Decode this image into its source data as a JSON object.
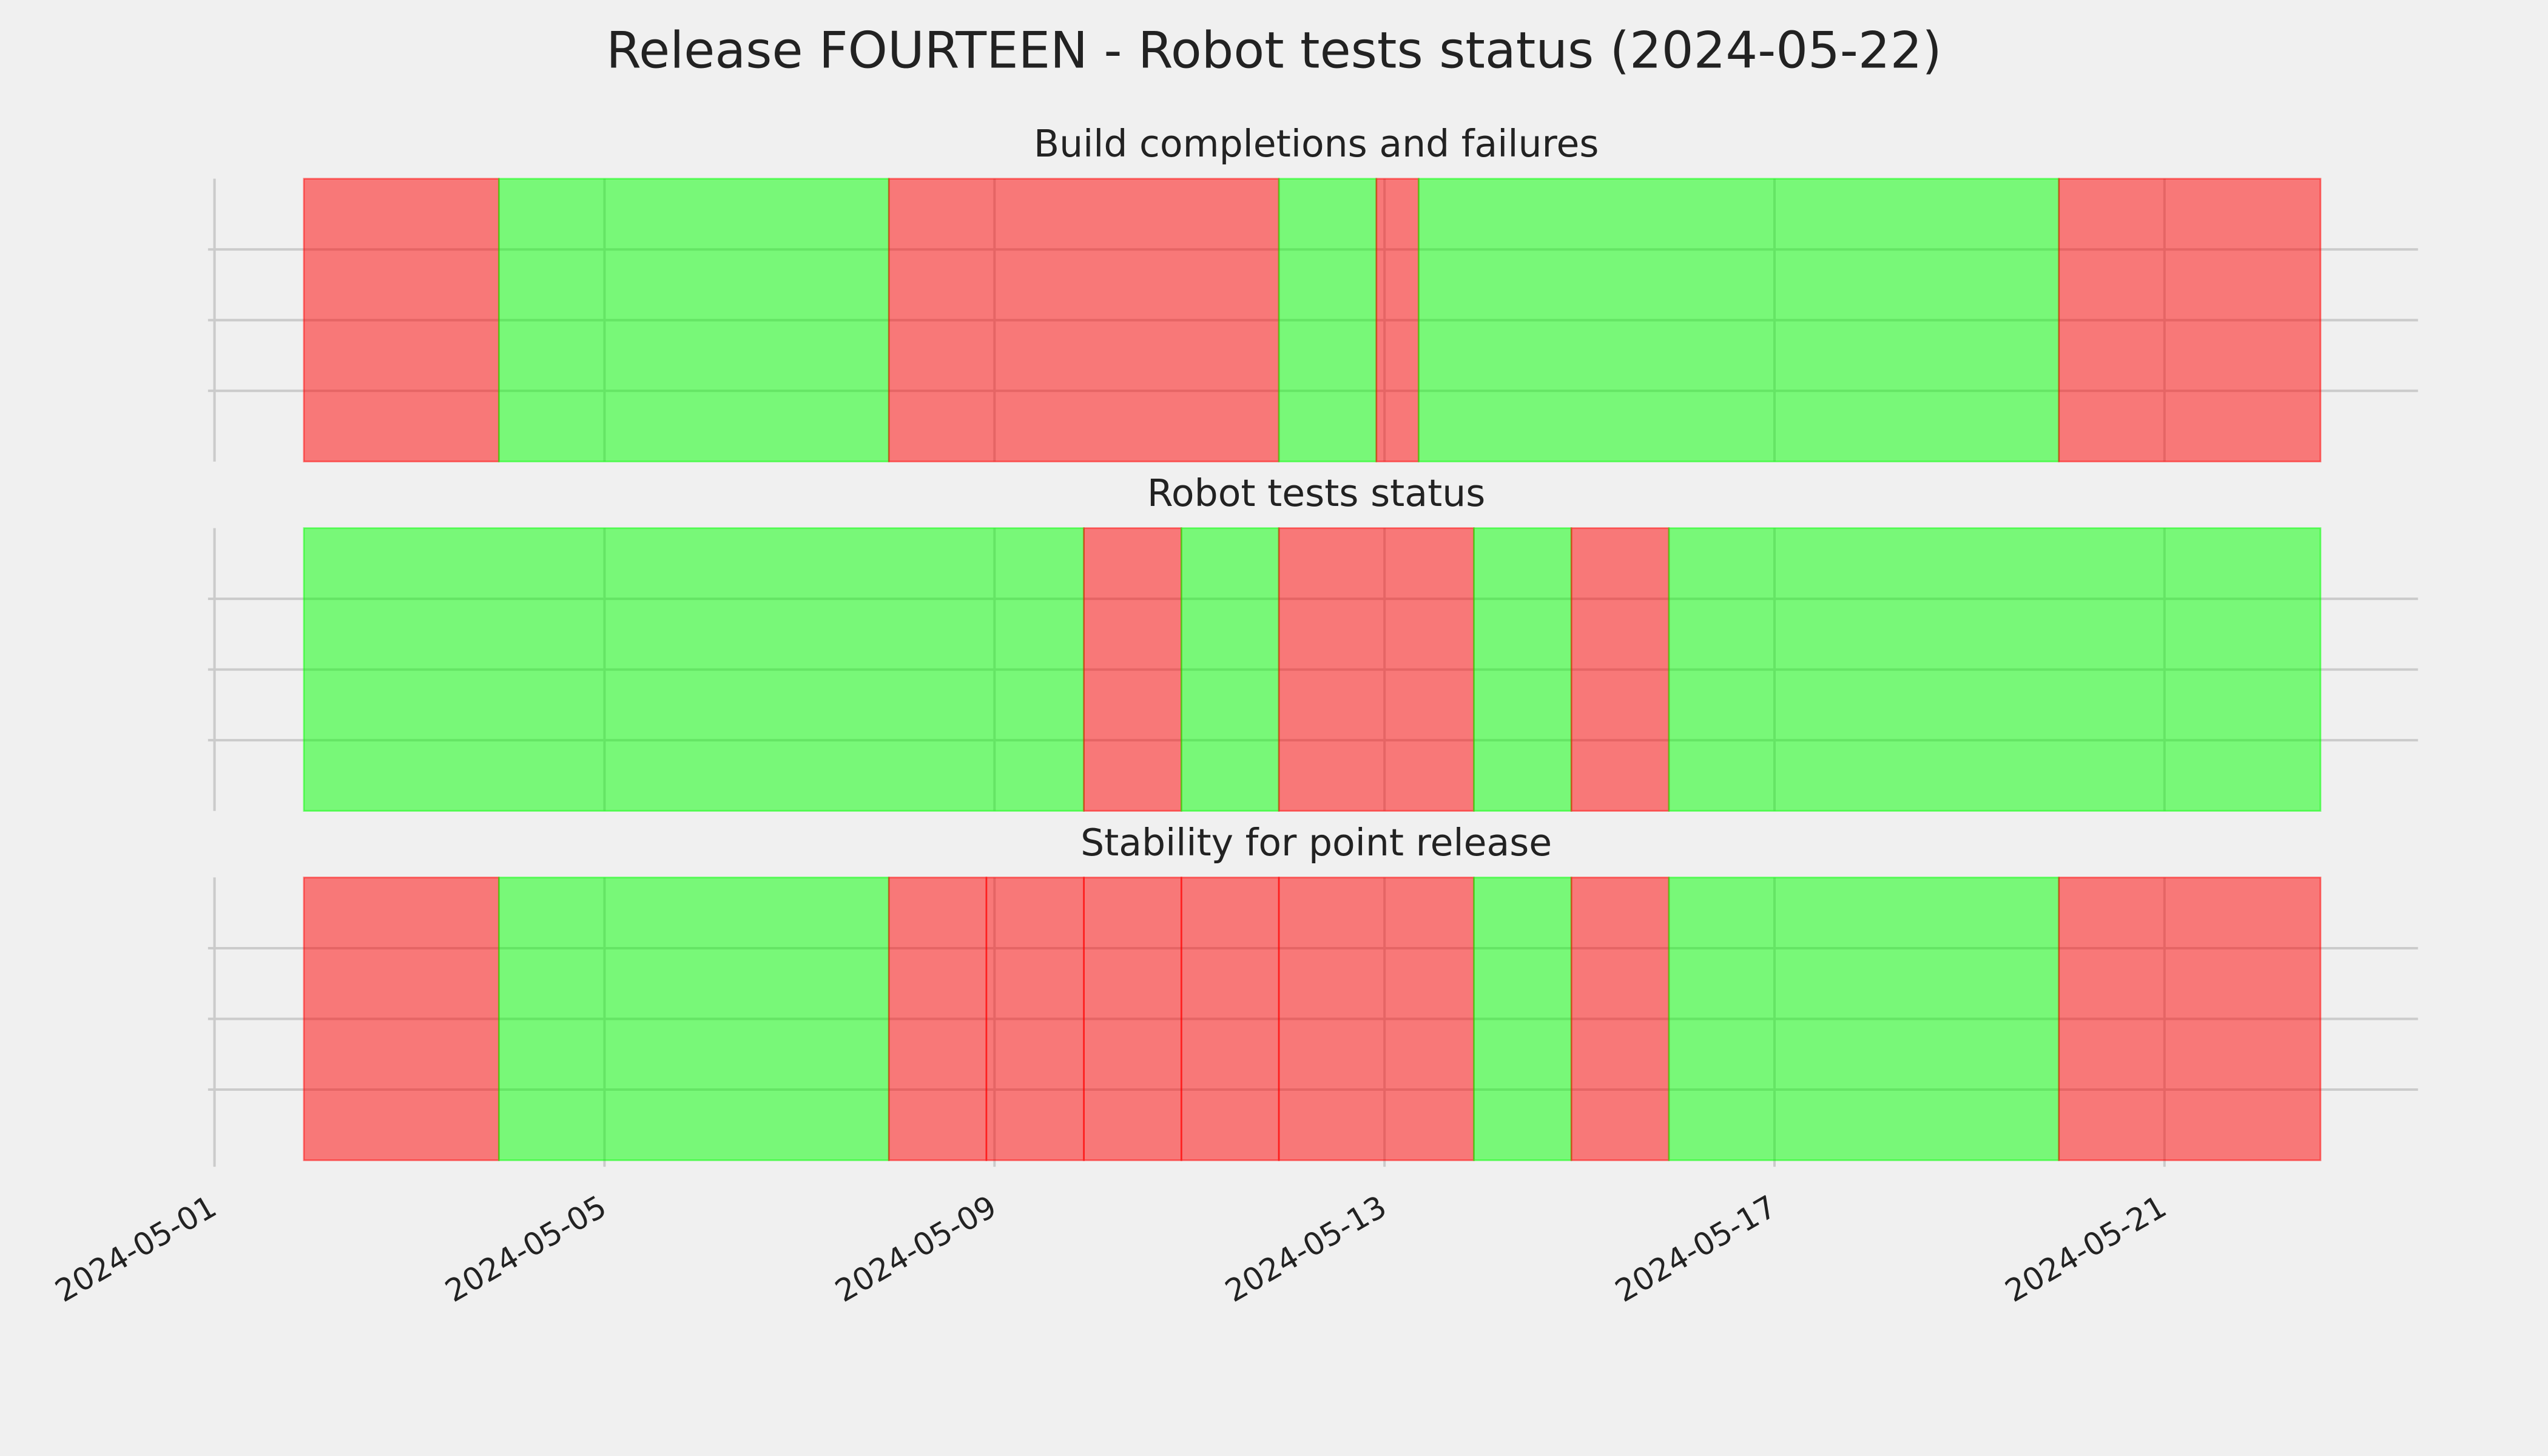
{
  "title": "Release FOURTEEN - Robot tests status (2024-05-22)",
  "chart_data": [
    {
      "type": "span",
      "title": "Build completions and failures",
      "alpha": 0.5,
      "grid": true,
      "xlim": [
        "2024-05-01T00:00",
        "2024-05-23T14:24"
      ],
      "xticks": [
        {
          "value": "2024-05-01T00:00",
          "label": "2024-05-01"
        },
        {
          "value": "2024-05-05T00:00",
          "label": "2024-05-05"
        },
        {
          "value": "2024-05-09T00:00",
          "label": "2024-05-09"
        },
        {
          "value": "2024-05-13T00:00",
          "label": "2024-05-13"
        },
        {
          "value": "2024-05-17T00:00",
          "label": "2024-05-17"
        },
        {
          "value": "2024-05-21T00:00",
          "label": "2024-05-21"
        }
      ],
      "ylim": [
        0,
        1
      ],
      "yticks": [
        0.25,
        0.5,
        0.75
      ],
      "segments": [
        {
          "start": "2024-05-01T22:00",
          "end": "2024-05-03T22:00",
          "color": "#ff0000"
        },
        {
          "start": "2024-05-03T22:00",
          "end": "2024-05-07T22:00",
          "color": "#00ff00"
        },
        {
          "start": "2024-05-07T22:00",
          "end": "2024-05-11T22:00",
          "color": "#ff0000"
        },
        {
          "start": "2024-05-11T22:00",
          "end": "2024-05-12T22:00",
          "color": "#00ff00"
        },
        {
          "start": "2024-05-12T22:00",
          "end": "2024-05-13T08:24",
          "color": "#ff0000"
        },
        {
          "start": "2024-05-13T08:24",
          "end": "2024-05-19T22:00",
          "color": "#00ff00"
        },
        {
          "start": "2024-05-19T22:00",
          "end": "2024-05-22T14:24",
          "color": "#ff0000"
        }
      ]
    },
    {
      "type": "span",
      "title": "Robot tests status",
      "alpha": 0.5,
      "grid": true,
      "xlim": [
        "2024-05-01T00:00",
        "2024-05-23T14:24"
      ],
      "xticks": [
        {
          "value": "2024-05-01T00:00",
          "label": "2024-05-01"
        },
        {
          "value": "2024-05-05T00:00",
          "label": "2024-05-05"
        },
        {
          "value": "2024-05-09T00:00",
          "label": "2024-05-09"
        },
        {
          "value": "2024-05-13T00:00",
          "label": "2024-05-13"
        },
        {
          "value": "2024-05-17T00:00",
          "label": "2024-05-17"
        },
        {
          "value": "2024-05-21T00:00",
          "label": "2024-05-21"
        }
      ],
      "ylim": [
        0,
        1
      ],
      "yticks": [
        0.25,
        0.5,
        0.75
      ],
      "segments": [
        {
          "start": "2024-05-01T22:00",
          "end": "2024-05-09T22:00",
          "color": "#00ff00"
        },
        {
          "start": "2024-05-09T22:00",
          "end": "2024-05-10T22:00",
          "color": "#ff0000"
        },
        {
          "start": "2024-05-10T22:00",
          "end": "2024-05-11T22:00",
          "color": "#00ff00"
        },
        {
          "start": "2024-05-11T22:00",
          "end": "2024-05-13T22:00",
          "color": "#ff0000"
        },
        {
          "start": "2024-05-13T22:00",
          "end": "2024-05-14T22:00",
          "color": "#00ff00"
        },
        {
          "start": "2024-05-14T22:00",
          "end": "2024-05-15T22:00",
          "color": "#ff0000"
        },
        {
          "start": "2024-05-15T22:00",
          "end": "2024-05-22T14:24",
          "color": "#00ff00"
        }
      ]
    },
    {
      "type": "span",
      "title": "Stability for point release",
      "alpha": 0.5,
      "grid": true,
      "xlim": [
        "2024-05-01T00:00",
        "2024-05-23T14:24"
      ],
      "xticks": [
        {
          "value": "2024-05-01T00:00",
          "label": "2024-05-01"
        },
        {
          "value": "2024-05-05T00:00",
          "label": "2024-05-05"
        },
        {
          "value": "2024-05-09T00:00",
          "label": "2024-05-09"
        },
        {
          "value": "2024-05-13T00:00",
          "label": "2024-05-13"
        },
        {
          "value": "2024-05-17T00:00",
          "label": "2024-05-17"
        },
        {
          "value": "2024-05-21T00:00",
          "label": "2024-05-21"
        }
      ],
      "ylim": [
        0,
        1
      ],
      "yticks": [
        0.25,
        0.5,
        0.75
      ],
      "segments": [
        {
          "start": "2024-05-01T22:00",
          "end": "2024-05-03T22:00",
          "color": "#ff0000"
        },
        {
          "start": "2024-05-03T22:00",
          "end": "2024-05-07T22:00",
          "color": "#00ff00"
        },
        {
          "start": "2024-05-07T22:00",
          "end": "2024-05-08T22:00",
          "color": "#ff0000"
        },
        {
          "start": "2024-05-08T22:00",
          "end": "2024-05-09T22:00",
          "color": "#ff0000"
        },
        {
          "start": "2024-05-09T22:00",
          "end": "2024-05-10T22:00",
          "color": "#ff0000"
        },
        {
          "start": "2024-05-10T22:00",
          "end": "2024-05-11T22:00",
          "color": "#ff0000"
        },
        {
          "start": "2024-05-11T22:00",
          "end": "2024-05-13T22:00",
          "color": "#ff0000"
        },
        {
          "start": "2024-05-13T22:00",
          "end": "2024-05-14T22:00",
          "color": "#00ff00"
        },
        {
          "start": "2024-05-14T22:00",
          "end": "2024-05-15T22:00",
          "color": "#ff0000"
        },
        {
          "start": "2024-05-15T22:00",
          "end": "2024-05-19T22:00",
          "color": "#00ff00"
        },
        {
          "start": "2024-05-19T22:00",
          "end": "2024-05-22T14:24",
          "color": "#ff0000"
        }
      ]
    }
  ]
}
